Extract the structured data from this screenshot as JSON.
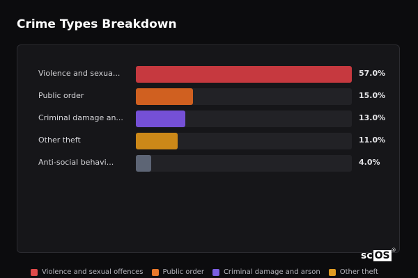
{
  "header": {
    "title": "Crime Types Breakdown"
  },
  "chart_data": {
    "type": "bar",
    "orientation": "horizontal",
    "categories": [
      "Violence and sexua...",
      "Public order",
      "Criminal damage an...",
      "Other theft",
      "Anti-social behavi..."
    ],
    "values": [
      57.0,
      15.0,
      13.0,
      11.0,
      4.0
    ],
    "value_labels": [
      "57.0%",
      "15.0%",
      "13.0%",
      "11.0%",
      "4.0%"
    ],
    "colors": [
      "#c6393f",
      "#d06020",
      "#7550d6",
      "#cc8818",
      "#5d6575"
    ],
    "xlim": [
      0,
      57.0
    ]
  },
  "legend": [
    {
      "label": "Violence and sexual offences",
      "color": "#e04a4a"
    },
    {
      "label": "Public order",
      "color": "#e8772a"
    },
    {
      "label": "Criminal damage and arson",
      "color": "#7b5ee0"
    },
    {
      "label": "Other theft",
      "color": "#e09b22"
    }
  ],
  "watermark": {
    "part1": "sc",
    "part2": "OS",
    "mark": "®"
  }
}
